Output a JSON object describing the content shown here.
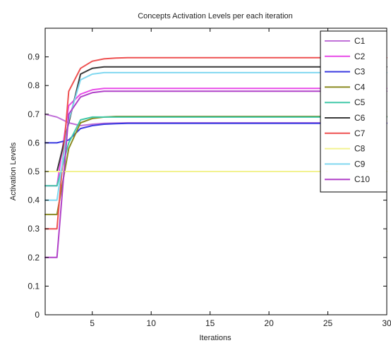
{
  "chart_data": {
    "type": "line",
    "title": "Concepts Activation Levels per  each iteration",
    "xlabel": "Iterations",
    "ylabel": "Activation Levels",
    "xlim": [
      1,
      30
    ],
    "ylim": [
      0,
      1
    ],
    "xticks": [
      5,
      10,
      15,
      20,
      25,
      30
    ],
    "yticks": [
      0,
      0.1,
      0.2,
      0.3,
      0.4,
      0.5,
      0.6,
      0.7,
      0.8,
      0.9
    ],
    "grid": false,
    "legend_position": "top-right",
    "x": [
      1,
      2,
      3,
      4,
      5,
      6,
      7,
      8,
      9,
      10,
      11,
      12,
      13,
      14,
      15,
      16,
      17,
      18,
      19,
      20,
      21,
      22,
      23,
      24,
      25,
      26,
      27,
      28,
      29,
      30
    ],
    "series": [
      {
        "name": "C1",
        "color": "#c070d8",
        "values": [
          0.7,
          0.69,
          0.67,
          0.66,
          0.665,
          0.668,
          0.669,
          0.67,
          0.67,
          0.67,
          0.67,
          0.67,
          0.67,
          0.67,
          0.67,
          0.67,
          0.67,
          0.67,
          0.67,
          0.67,
          0.67,
          0.67,
          0.67,
          0.67,
          0.67,
          0.67,
          0.67,
          0.67,
          0.67,
          0.67
        ]
      },
      {
        "name": "C2",
        "color": "#e84ce8",
        "values": [
          0.45,
          0.45,
          0.73,
          0.77,
          0.785,
          0.79,
          0.79,
          0.79,
          0.79,
          0.79,
          0.79,
          0.79,
          0.79,
          0.79,
          0.79,
          0.79,
          0.79,
          0.79,
          0.79,
          0.79,
          0.79,
          0.79,
          0.79,
          0.79,
          0.79,
          0.79,
          0.79,
          0.79,
          0.79,
          0.79
        ]
      },
      {
        "name": "C3",
        "color": "#3a3ae0",
        "values": [
          0.6,
          0.6,
          0.61,
          0.65,
          0.66,
          0.665,
          0.667,
          0.668,
          0.668,
          0.668,
          0.668,
          0.668,
          0.668,
          0.668,
          0.668,
          0.668,
          0.668,
          0.668,
          0.668,
          0.668,
          0.668,
          0.668,
          0.668,
          0.668,
          0.668,
          0.668,
          0.668,
          0.668,
          0.668,
          0.668
        ]
      },
      {
        "name": "C4",
        "color": "#8a8a20",
        "values": [
          0.35,
          0.35,
          0.58,
          0.67,
          0.685,
          0.69,
          0.692,
          0.692,
          0.692,
          0.692,
          0.692,
          0.692,
          0.692,
          0.692,
          0.692,
          0.692,
          0.692,
          0.692,
          0.692,
          0.692,
          0.692,
          0.692,
          0.692,
          0.692,
          0.692,
          0.692,
          0.692,
          0.692,
          0.692,
          0.692
        ]
      },
      {
        "name": "C5",
        "color": "#40c8a8",
        "values": [
          0.45,
          0.45,
          0.6,
          0.68,
          0.69,
          0.69,
          0.69,
          0.69,
          0.69,
          0.69,
          0.69,
          0.69,
          0.69,
          0.69,
          0.69,
          0.69,
          0.69,
          0.69,
          0.69,
          0.69,
          0.69,
          0.69,
          0.69,
          0.69,
          0.69,
          0.69,
          0.69,
          0.69,
          0.69,
          0.69
        ]
      },
      {
        "name": "C6",
        "color": "#3a3a3a",
        "values": [
          0.5,
          0.5,
          0.67,
          0.84,
          0.86,
          0.865,
          0.865,
          0.865,
          0.865,
          0.865,
          0.865,
          0.865,
          0.865,
          0.865,
          0.865,
          0.865,
          0.865,
          0.865,
          0.865,
          0.865,
          0.865,
          0.865,
          0.865,
          0.865,
          0.865,
          0.865,
          0.865,
          0.865,
          0.865,
          0.865
        ]
      },
      {
        "name": "C7",
        "color": "#ee5050",
        "values": [
          0.3,
          0.3,
          0.78,
          0.86,
          0.885,
          0.893,
          0.896,
          0.897,
          0.897,
          0.897,
          0.897,
          0.897,
          0.897,
          0.897,
          0.897,
          0.897,
          0.897,
          0.897,
          0.897,
          0.897,
          0.897,
          0.897,
          0.897,
          0.897,
          0.897,
          0.897,
          0.897,
          0.897,
          0.897,
          0.897
        ]
      },
      {
        "name": "C8",
        "color": "#f2f290",
        "values": [
          0.5,
          0.5,
          0.5,
          0.5,
          0.5,
          0.5,
          0.5,
          0.5,
          0.5,
          0.5,
          0.5,
          0.5,
          0.5,
          0.5,
          0.5,
          0.5,
          0.5,
          0.5,
          0.5,
          0.5,
          0.5,
          0.5,
          0.5,
          0.5,
          0.5,
          0.5,
          0.5,
          0.5,
          0.5,
          0.5
        ]
      },
      {
        "name": "C9",
        "color": "#80d8f0",
        "values": [
          0.4,
          0.4,
          0.68,
          0.82,
          0.84,
          0.845,
          0.845,
          0.845,
          0.845,
          0.845,
          0.845,
          0.845,
          0.845,
          0.845,
          0.845,
          0.845,
          0.845,
          0.845,
          0.845,
          0.845,
          0.845,
          0.845,
          0.845,
          0.845,
          0.845,
          0.845,
          0.845,
          0.845,
          0.845,
          0.845
        ]
      },
      {
        "name": "C10",
        "color": "#b040c8",
        "values": [
          0.2,
          0.2,
          0.7,
          0.76,
          0.775,
          0.78,
          0.78,
          0.78,
          0.78,
          0.78,
          0.78,
          0.78,
          0.78,
          0.78,
          0.78,
          0.78,
          0.78,
          0.78,
          0.78,
          0.78,
          0.78,
          0.78,
          0.78,
          0.78,
          0.78,
          0.78,
          0.78,
          0.78,
          0.78,
          0.78
        ]
      }
    ]
  }
}
